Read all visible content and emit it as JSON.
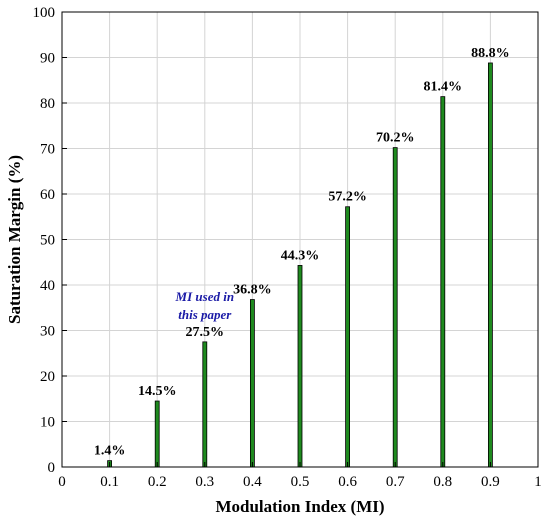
{
  "chart_data": {
    "type": "bar",
    "title": "",
    "xlabel": "Modulation Index (MI)",
    "ylabel": "Saturation Margin (%)",
    "x": [
      0.1,
      0.2,
      0.3,
      0.4,
      0.5,
      0.6,
      0.7,
      0.8,
      0.9
    ],
    "values": [
      1.4,
      14.5,
      27.5,
      36.8,
      44.3,
      57.2,
      70.2,
      81.4,
      88.8
    ],
    "data_labels": [
      "1.4%",
      "14.5%",
      "27.5%",
      "36.8%",
      "44.3%",
      "57.2%",
      "70.2%",
      "81.4%",
      "88.8%"
    ],
    "xlim": [
      0,
      1
    ],
    "ylim": [
      0,
      100
    ],
    "xticks": [
      0,
      0.1,
      0.2,
      0.3,
      0.4,
      0.5,
      0.6,
      0.7,
      0.8,
      0.9,
      1
    ],
    "xtick_labels": [
      "0",
      "0.1",
      "0.2",
      "0.3",
      "0.4",
      "0.5",
      "0.6",
      "0.7",
      "0.8",
      "0.9",
      "1"
    ],
    "yticks": [
      0,
      10,
      20,
      30,
      40,
      50,
      60,
      70,
      80,
      90,
      100
    ],
    "ytick_labels": [
      "0",
      "10",
      "20",
      "30",
      "40",
      "50",
      "60",
      "70",
      "80",
      "90",
      "100"
    ],
    "grid": true,
    "legend": "none",
    "bar_color": "#1f8a1f",
    "bar_edge_color": "#000000",
    "annotation": {
      "lines": [
        "MI used in",
        "this paper"
      ],
      "x": 0.3,
      "color": "#1a1aa6"
    }
  }
}
